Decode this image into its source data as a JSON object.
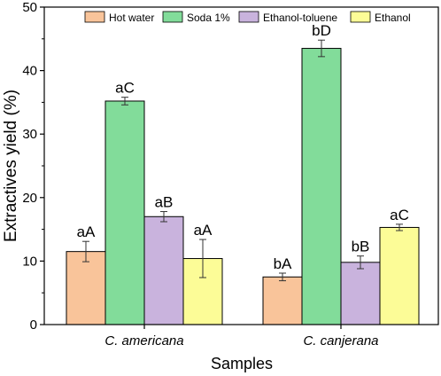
{
  "chart_data": {
    "type": "bar",
    "categories": [
      "C. americana",
      "C. canjerana"
    ],
    "xlabel": "Samples",
    "ylabel": "Extractives yield (%)",
    "ylim": [
      0,
      50
    ],
    "yticks": [
      0,
      10,
      20,
      30,
      40,
      50
    ],
    "legend_position": "top",
    "series": [
      {
        "name": "Hot water",
        "color": "#f9c49a",
        "values": [
          11.5,
          7.5
        ],
        "errors": [
          1.6,
          0.6
        ],
        "labels": [
          "aA",
          "bA"
        ]
      },
      {
        "name": "Soda 1%",
        "color": "#82dc9a",
        "values": [
          35.2,
          43.5
        ],
        "errors": [
          0.6,
          1.3
        ],
        "labels": [
          "aC",
          "bD"
        ]
      },
      {
        "name": "Ethanol-toluene",
        "color": "#c9b3dd",
        "values": [
          17.0,
          9.8
        ],
        "errors": [
          0.8,
          1.0
        ],
        "labels": [
          "aB",
          "bB"
        ]
      },
      {
        "name": "Ethanol",
        "color": "#fcfc97",
        "values": [
          10.4,
          15.3
        ],
        "errors": [
          3.0,
          0.5
        ],
        "labels": [
          "aA",
          "aC"
        ]
      }
    ]
  }
}
